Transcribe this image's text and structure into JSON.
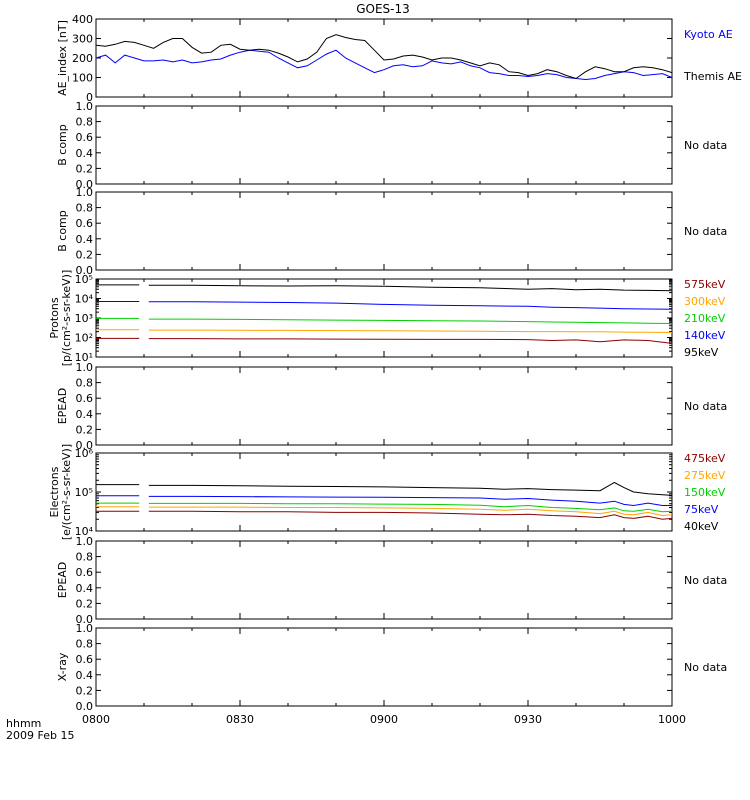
{
  "title": "GOES-13",
  "time_axis": {
    "label_top": "hhmm",
    "label_bottom": "2009 Feb 15",
    "ticks": [
      "0800",
      "0830",
      "0900",
      "0930",
      "1000"
    ],
    "range_minutes": [
      0,
      120
    ]
  },
  "no_data_text": "No data",
  "chart_data": [
    {
      "type": "line",
      "panel": "ae_index",
      "ylabel": "AE_index [nT]",
      "ylim": [
        0,
        400
      ],
      "yticks": [
        "0",
        "100",
        "200",
        "300",
        "400"
      ],
      "x_minutes": [
        0,
        2,
        4,
        6,
        8,
        10,
        12,
        14,
        16,
        18,
        20,
        22,
        24,
        26,
        28,
        30,
        32,
        34,
        36,
        38,
        40,
        42,
        44,
        46,
        48,
        50,
        52,
        54,
        56,
        58,
        60,
        62,
        64,
        66,
        68,
        70,
        72,
        74,
        76,
        78,
        80,
        82,
        84,
        86,
        88,
        90,
        92,
        94,
        96,
        98,
        100,
        102,
        104,
        106,
        108,
        110,
        112,
        114,
        116,
        118,
        120
      ],
      "series": [
        {
          "name": "Kyoto AE",
          "color": "#0000ff",
          "values": [
            200,
            215,
            175,
            215,
            200,
            185,
            185,
            190,
            180,
            190,
            175,
            180,
            190,
            195,
            215,
            230,
            240,
            235,
            230,
            200,
            175,
            150,
            160,
            190,
            220,
            240,
            200,
            175,
            150,
            125,
            140,
            160,
            165,
            155,
            160,
            185,
            175,
            170,
            180,
            160,
            150,
            125,
            120,
            110,
            110,
            105,
            110,
            120,
            115,
            100,
            95,
            90,
            95,
            110,
            120,
            130,
            125,
            110,
            115,
            120,
            100
          ]
        },
        {
          "name": "Themis AE",
          "color": "#000000",
          "values": [
            265,
            260,
            270,
            285,
            280,
            265,
            250,
            280,
            300,
            300,
            255,
            225,
            230,
            265,
            270,
            245,
            240,
            245,
            240,
            225,
            205,
            180,
            195,
            230,
            300,
            320,
            305,
            295,
            290,
            240,
            190,
            195,
            210,
            215,
            205,
            190,
            200,
            200,
            190,
            175,
            160,
            175,
            165,
            130,
            125,
            110,
            120,
            140,
            130,
            110,
            95,
            130,
            155,
            145,
            130,
            130,
            150,
            155,
            150,
            140,
            125
          ]
        }
      ]
    },
    {
      "type": "line",
      "panel": "b_comp_1",
      "ylabel": "B comp",
      "ylim": [
        0,
        1
      ],
      "yticks": [
        "0.0",
        "0.2",
        "0.4",
        "0.6",
        "0.8",
        "1.0"
      ],
      "series": []
    },
    {
      "type": "line",
      "panel": "b_comp_2",
      "ylabel": "B comp",
      "ylim": [
        0,
        1
      ],
      "yticks": [
        "0.0",
        "0.2",
        "0.4",
        "0.6",
        "0.8",
        "1.0"
      ],
      "series": []
    },
    {
      "type": "line",
      "panel": "protons",
      "ylabel": [
        "Protons",
        "[p/(cm²-s-sr-keV)]"
      ],
      "yscale": "log",
      "ylim": [
        10,
        100000
      ],
      "yticks": [
        "10¹",
        "10²",
        "10³",
        "10⁴",
        "10⁵"
      ],
      "gap_minutes": [
        9,
        11
      ],
      "x_minutes": [
        0,
        10,
        20,
        30,
        40,
        50,
        60,
        70,
        80,
        90,
        95,
        100,
        105,
        110,
        115,
        120
      ],
      "series": [
        {
          "name": "575keV",
          "color": "#8b0000",
          "values": [
            90,
            90,
            88,
            85,
            85,
            83,
            82,
            80,
            80,
            78,
            70,
            75,
            60,
            75,
            70,
            50
          ]
        },
        {
          "name": "300keV",
          "color": "#ffa500",
          "values": [
            250,
            245,
            240,
            235,
            230,
            225,
            220,
            215,
            210,
            200,
            200,
            195,
            195,
            190,
            185,
            180
          ]
        },
        {
          "name": "210keV",
          "color": "#00d000",
          "values": [
            950,
            920,
            880,
            850,
            820,
            780,
            750,
            720,
            700,
            650,
            620,
            600,
            580,
            560,
            540,
            520
          ]
        },
        {
          "name": "140keV",
          "color": "#0000ff",
          "values": [
            7000,
            7000,
            6800,
            6500,
            6200,
            5800,
            5000,
            4500,
            4200,
            4000,
            3600,
            3400,
            3200,
            3000,
            2900,
            2800
          ]
        },
        {
          "name": "95keV",
          "color": "#000000",
          "values": [
            50000,
            50000,
            48000,
            45000,
            44000,
            45000,
            42000,
            38000,
            36000,
            30000,
            32000,
            28000,
            30000,
            27000,
            26000,
            25000
          ]
        }
      ]
    },
    {
      "type": "line",
      "panel": "epead_protons",
      "ylabel": "EPEAD",
      "ylim": [
        0,
        1
      ],
      "yticks": [
        "0.0",
        "0.2",
        "0.4",
        "0.6",
        "0.8",
        "1.0"
      ],
      "series": []
    },
    {
      "type": "line",
      "panel": "electrons",
      "ylabel": [
        "Electrons",
        "[e/(cm²-s-sr-keV)]"
      ],
      "yscale": "log",
      "ylim": [
        10000,
        1000000
      ],
      "yticks": [
        "10⁴",
        "10⁵",
        "10⁶"
      ],
      "gap_minutes": [
        9,
        11
      ],
      "x_minutes": [
        0,
        10,
        20,
        30,
        40,
        50,
        60,
        70,
        80,
        85,
        90,
        95,
        100,
        105,
        108,
        110,
        112,
        115,
        118,
        120
      ],
      "series": [
        {
          "name": "475keV",
          "color": "#8b0000",
          "values": [
            32000,
            32000,
            32000,
            31000,
            31000,
            30000,
            30000,
            29000,
            27000,
            26000,
            27000,
            25000,
            24000,
            22000,
            26000,
            22000,
            21000,
            24000,
            20000,
            21000
          ]
        },
        {
          "name": "275keV",
          "color": "#ffa500",
          "values": [
            42000,
            42000,
            41000,
            41000,
            40000,
            40000,
            39000,
            38000,
            36000,
            34000,
            36000,
            33000,
            31000,
            28000,
            32000,
            27000,
            26000,
            30000,
            25000,
            26000
          ]
        },
        {
          "name": "150keV",
          "color": "#00d000",
          "values": [
            52000,
            52000,
            51000,
            51000,
            50000,
            50000,
            49000,
            48000,
            46000,
            42000,
            45000,
            40000,
            38000,
            35000,
            39000,
            33000,
            32000,
            36000,
            31000,
            32000
          ]
        },
        {
          "name": "75keV",
          "color": "#0000ff",
          "values": [
            80000,
            78000,
            77000,
            76000,
            75000,
            74000,
            73000,
            72000,
            70000,
            65000,
            68000,
            62000,
            58000,
            52000,
            58000,
            48000,
            45000,
            52000,
            45000,
            45000
          ]
        },
        {
          "name": "40keV",
          "color": "#000000",
          "values": [
            155000,
            152000,
            148000,
            145000,
            140000,
            138000,
            135000,
            130000,
            125000,
            118000,
            122000,
            115000,
            112000,
            108000,
            175000,
            130000,
            100000,
            90000,
            85000,
            82000
          ]
        }
      ]
    },
    {
      "type": "line",
      "panel": "epead_electrons",
      "ylabel": "EPEAD",
      "ylim": [
        0,
        1
      ],
      "yticks": [
        "0.0",
        "0.2",
        "0.4",
        "0.6",
        "0.8",
        "1.0"
      ],
      "series": []
    },
    {
      "type": "line",
      "panel": "xray",
      "ylabel": "X-ray",
      "ylim": [
        0,
        1
      ],
      "yticks": [
        "0.0",
        "0.2",
        "0.4",
        "0.6",
        "0.8",
        "1.0"
      ],
      "series": []
    }
  ]
}
